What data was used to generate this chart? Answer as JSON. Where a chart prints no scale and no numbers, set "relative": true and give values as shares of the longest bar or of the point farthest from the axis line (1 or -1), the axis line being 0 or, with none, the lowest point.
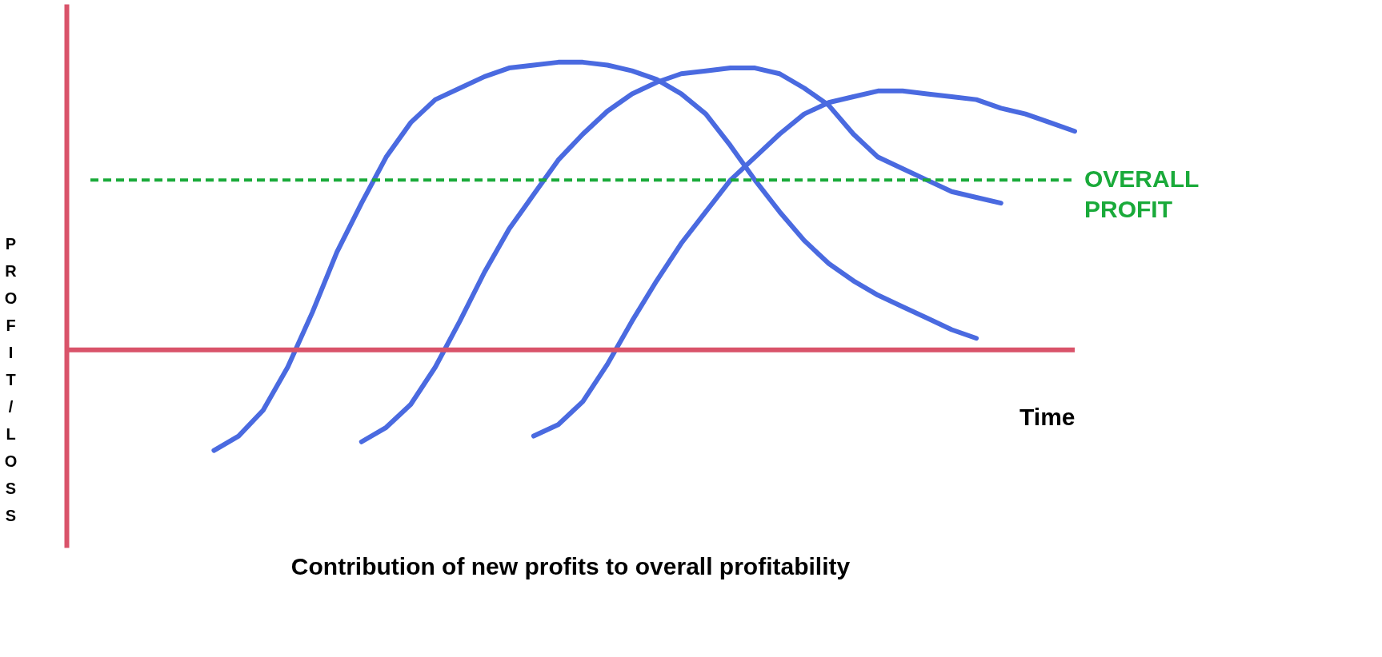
{
  "chart_data": {
    "type": "line",
    "relative": true,
    "title": "Contribution of new profits to overall profitability",
    "xlabel": "Time",
    "ylabel": "PROFIT/LOSS",
    "line_style": "solid",
    "marker": "none",
    "categories": [
      null,
      null,
      null,
      null,
      null,
      null,
      null,
      null,
      null,
      null,
      null,
      null,
      null,
      null,
      null,
      null,
      null,
      null,
      null,
      null,
      null,
      null,
      null,
      null,
      null,
      null,
      null,
      null,
      null,
      null,
      null,
      null,
      null,
      null,
      null,
      null,
      null,
      null,
      null,
      null,
      null,
      null
    ],
    "series": [
      {
        "color": "#4a6ae0",
        "values": [
          null,
          null,
          null,
          null,
          null,
          null,
          -0.35,
          -0.3,
          -0.21,
          -0.06,
          0.13,
          0.34,
          0.51,
          0.67,
          0.79,
          0.87,
          0.91,
          0.95,
          0.98,
          0.99,
          1.0,
          1.0,
          0.99,
          0.97,
          0.94,
          0.89,
          0.82,
          0.71,
          0.59,
          0.48,
          0.38,
          0.3,
          0.24,
          0.19,
          0.15,
          0.11,
          0.07,
          0.04,
          null,
          null,
          null,
          null
        ]
      },
      {
        "color": "#4a6ae0",
        "values": [
          null,
          null,
          null,
          null,
          null,
          null,
          null,
          null,
          null,
          null,
          null,
          null,
          -0.32,
          -0.27,
          -0.19,
          -0.06,
          0.1,
          0.27,
          0.42,
          0.54,
          0.66,
          0.75,
          0.83,
          0.89,
          0.93,
          0.96,
          0.97,
          0.98,
          0.98,
          0.96,
          0.91,
          0.85,
          0.75,
          0.67,
          0.63,
          0.59,
          0.55,
          0.53,
          0.51,
          null,
          null,
          null
        ]
      },
      {
        "color": "#4a6ae0",
        "values": [
          null,
          null,
          null,
          null,
          null,
          null,
          null,
          null,
          null,
          null,
          null,
          null,
          null,
          null,
          null,
          null,
          null,
          null,
          null,
          -0.3,
          -0.26,
          -0.18,
          -0.05,
          0.1,
          0.24,
          0.37,
          0.48,
          0.59,
          0.67,
          0.75,
          0.82,
          0.86,
          0.88,
          0.9,
          0.9,
          0.89,
          0.88,
          0.87,
          0.84,
          0.82,
          0.79,
          0.76
        ]
      }
    ],
    "ref_lines": [
      {
        "axis": "y",
        "value": 0,
        "color": "#d9536a",
        "line_style": "solid"
      },
      {
        "axis": "y",
        "value": 0.59,
        "label": "OVERALL PROFIT",
        "color": "#1aaa3a",
        "line_style": "dashed"
      }
    ]
  }
}
